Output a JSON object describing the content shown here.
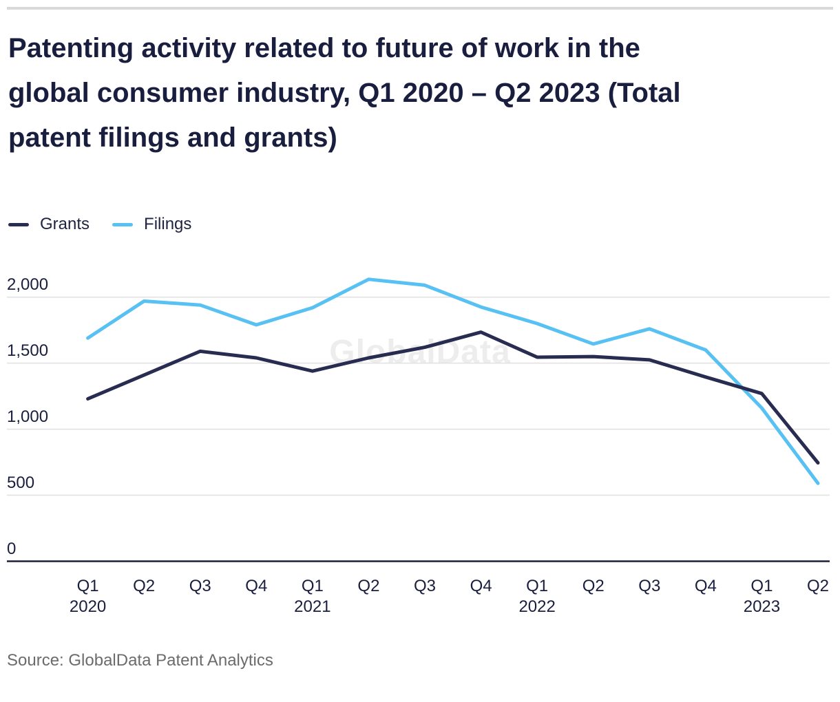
{
  "page": {
    "background": "#ffffff",
    "divider_color": "#d9d9d9"
  },
  "header": {
    "title_lines": [
      "Patenting activity related to future of work in the",
      "global consumer industry, Q1 2020 – Q2 2023 (Total",
      "patent filings and grants)"
    ]
  },
  "legend": {
    "items": [
      {
        "label": "Grants",
        "color": "#282c51"
      },
      {
        "label": "Filings",
        "color": "#58c1f3"
      }
    ]
  },
  "watermark": "GlobalData",
  "footer": {
    "source": "Source: GlobalData Patent Analytics"
  },
  "chart_data": {
    "type": "line",
    "title": "Patenting activity related to future of work in the global consumer industry, Q1 2020 – Q2 2023 (Total patent filings and grants)",
    "categories": [
      "Q1 2020",
      "Q2 2020",
      "Q3 2020",
      "Q4 2020",
      "Q1 2021",
      "Q2 2021",
      "Q3 2021",
      "Q4 2021",
      "Q1 2022",
      "Q2 2022",
      "Q3 2022",
      "Q4 2022",
      "Q1 2023",
      "Q2 2023"
    ],
    "x_tick_quarters": [
      "Q1",
      "Q2",
      "Q3",
      "Q4",
      "Q1",
      "Q2",
      "Q3",
      "Q4",
      "Q1",
      "Q2",
      "Q3",
      "Q4",
      "Q1",
      "Q2"
    ],
    "x_tick_years": [
      "2020",
      "",
      "",
      "",
      "2021",
      "",
      "",
      "",
      "2022",
      "",
      "",
      "",
      "2023",
      ""
    ],
    "series": [
      {
        "name": "Grants",
        "color": "#282c51",
        "values": [
          1230,
          1410,
          1590,
          1540,
          1440,
          1540,
          1620,
          1735,
          1545,
          1550,
          1525,
          1395,
          1270,
          745
        ]
      },
      {
        "name": "Filings",
        "color": "#58c1f3",
        "values": [
          1690,
          1970,
          1940,
          1790,
          1920,
          2135,
          2090,
          1925,
          1800,
          1645,
          1760,
          1600,
          1160,
          590
        ]
      }
    ],
    "ylim": [
      0,
      2000
    ],
    "yticks": [
      0,
      500,
      1000,
      1500,
      2000
    ],
    "ytick_labels": [
      "0",
      "500",
      "1,000",
      "1,500",
      "2,000"
    ],
    "grid": "horizontal-only",
    "legend_position": "top-left",
    "axis_color": "#1b1f3b",
    "gridline_color": "#e0e0e0"
  }
}
